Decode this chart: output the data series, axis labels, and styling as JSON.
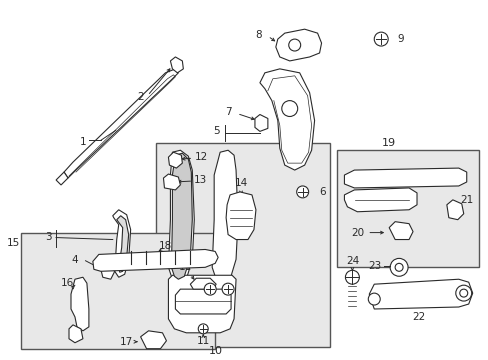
{
  "bg_color": "#ffffff",
  "fig_width": 4.89,
  "fig_height": 3.6,
  "dpi": 100,
  "lc": "#2a2a2a",
  "box_fill": "#e8e8e8",
  "white": "#ffffff"
}
